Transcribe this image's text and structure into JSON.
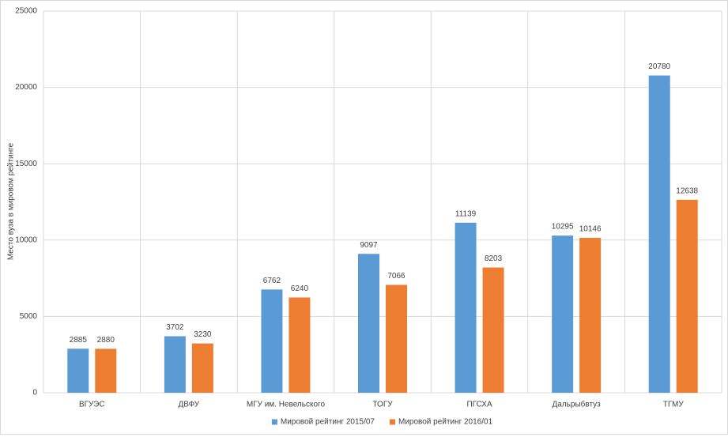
{
  "chart_data": {
    "type": "bar",
    "y_label": "Место вуза в мировом рейтинге",
    "categories": [
      "ВГУЭС",
      "ДВФУ",
      "МГУ им. Невельского",
      "ТОГУ",
      "ПГСХА",
      "Дальрыбвтуз",
      "ТГМУ"
    ],
    "series": [
      {
        "name": "Мировой рейтинг 2015/07",
        "color": "#5b9bd5",
        "values": [
          2885,
          3702,
          6762,
          9097,
          11139,
          10295,
          20780
        ]
      },
      {
        "name": "Мировой рейтинг 2016/01",
        "color": "#ed7d31",
        "values": [
          2880,
          3230,
          6240,
          7066,
          8203,
          10146,
          12638
        ]
      }
    ],
    "ylim": [
      0,
      25000
    ],
    "yticks": [
      0,
      5000,
      10000,
      15000,
      20000,
      25000
    ],
    "grid": true,
    "legend": "bottom"
  }
}
